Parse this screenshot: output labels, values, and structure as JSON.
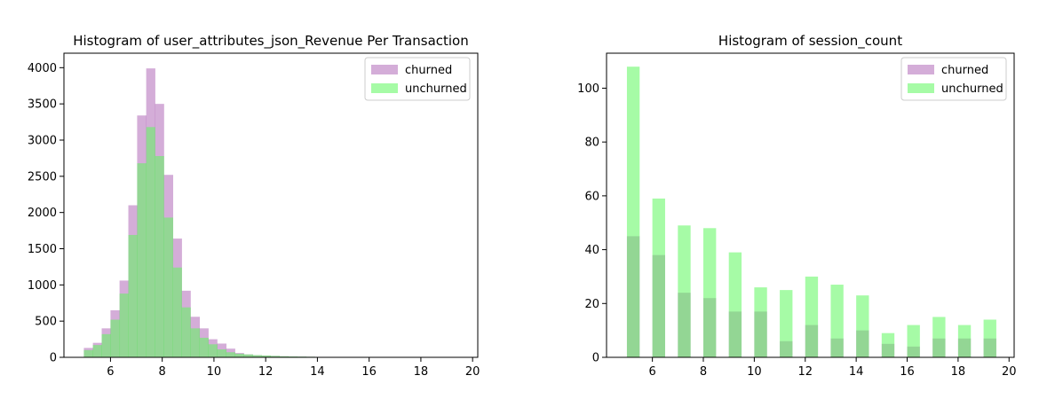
{
  "chart_data": [
    {
      "type": "histogram",
      "title": "Histogram of user_attributes_json_Revenue Per Transaction",
      "xlabel": "",
      "ylabel": "",
      "xlim": [
        4.2,
        20.2
      ],
      "ylim": [
        0,
        4200
      ],
      "xticks": [
        6,
        8,
        10,
        12,
        14,
        16,
        18,
        20
      ],
      "xtick_labels": [
        "6",
        "8",
        "10",
        "12",
        "14",
        "16",
        "18",
        "20"
      ],
      "yticks": [
        0,
        500,
        1000,
        1500,
        2000,
        2500,
        3000,
        3500,
        4000
      ],
      "ytick_labels": [
        "0",
        "500",
        "1000",
        "1500",
        "2000",
        "2500",
        "3000",
        "3500",
        "4000"
      ],
      "legend_position": "top-right",
      "bin_edges": [
        4.97,
        5.32,
        5.66,
        6.0,
        6.35,
        6.69,
        7.03,
        7.38,
        7.72,
        8.06,
        8.41,
        8.75,
        9.09,
        9.44,
        9.78,
        10.12,
        10.47,
        10.81,
        11.15,
        11.5,
        11.84,
        12.18,
        12.53,
        12.87,
        13.21,
        13.56,
        13.9,
        14.24,
        14.59,
        14.93,
        15.27,
        15.62,
        15.96,
        16.3,
        16.65,
        16.99,
        17.33,
        17.68,
        18.02,
        18.36,
        18.71,
        19.05,
        19.39,
        19.74
      ],
      "series": [
        {
          "name": "churned",
          "color": "#b169b8",
          "values": [
            130,
            200,
            400,
            650,
            1060,
            2100,
            3340,
            3990,
            3500,
            2520,
            1640,
            920,
            560,
            400,
            250,
            190,
            120,
            60,
            40,
            30,
            25,
            20,
            15,
            12,
            10,
            8,
            6,
            5,
            4,
            3,
            2,
            2,
            1,
            1,
            1,
            0,
            0,
            0,
            0,
            0,
            0,
            0,
            0
          ]
        },
        {
          "name": "unchurned",
          "color": "#5cf85c",
          "values": [
            100,
            170,
            320,
            520,
            880,
            1690,
            2680,
            3180,
            2780,
            1930,
            1240,
            690,
            400,
            270,
            180,
            110,
            70,
            50,
            40,
            30,
            25,
            20,
            15,
            12,
            10,
            8,
            6,
            5,
            4,
            3,
            2,
            2,
            1,
            1,
            1,
            0,
            0,
            0,
            0,
            0,
            0,
            0,
            0
          ]
        }
      ]
    },
    {
      "type": "histogram",
      "title": "Histogram of session_count",
      "xlabel": "",
      "ylabel": "",
      "xlim": [
        4.2,
        20.2
      ],
      "ylim": [
        0,
        113
      ],
      "xticks": [
        6,
        8,
        10,
        12,
        14,
        16,
        18,
        20
      ],
      "xtick_labels": [
        "6",
        "8",
        "10",
        "12",
        "14",
        "16",
        "18",
        "20"
      ],
      "yticks": [
        0,
        20,
        40,
        60,
        80,
        100
      ],
      "ytick_labels": [
        "0",
        "20",
        "40",
        "60",
        "80",
        "100"
      ],
      "legend_position": "top-right",
      "bar_width": 0.5,
      "bar_x": [
        5.25,
        6.25,
        7.25,
        8.25,
        9.25,
        10.25,
        11.25,
        12.25,
        13.25,
        14.25,
        15.25,
        16.25,
        17.25,
        18.25,
        19.25
      ],
      "series": [
        {
          "name": "churned",
          "color": "#b169b8",
          "values": [
            45,
            38,
            24,
            22,
            17,
            17,
            6,
            12,
            7,
            10,
            5,
            4,
            7,
            7,
            7
          ]
        },
        {
          "name": "unchurned",
          "color": "#5cf85c",
          "values": [
            108,
            59,
            49,
            48,
            39,
            26,
            25,
            30,
            27,
            23,
            9,
            12,
            15,
            12,
            14
          ]
        }
      ]
    }
  ]
}
